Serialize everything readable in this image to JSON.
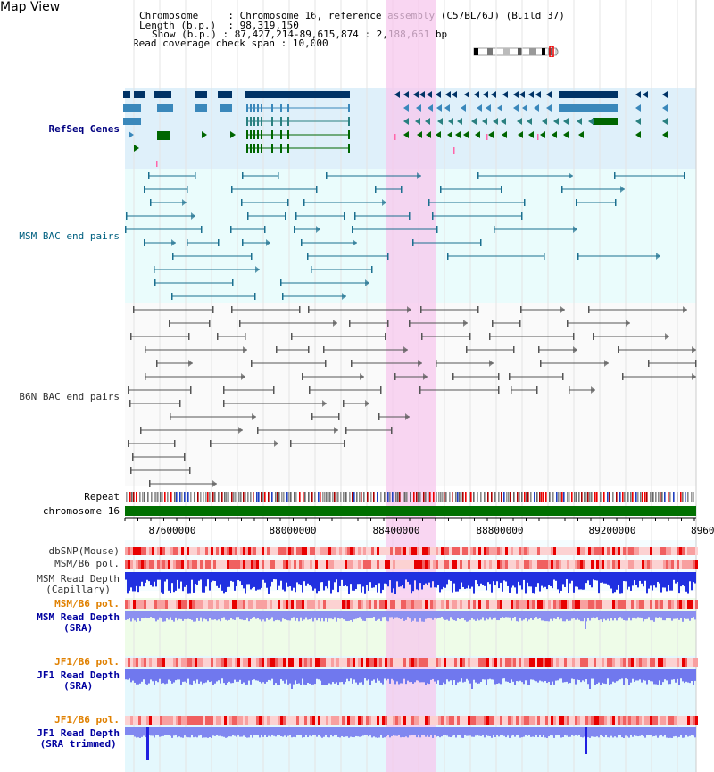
{
  "page_title": "Map View",
  "info": {
    "chromosome_key": "Chromosome",
    "chromosome_val": "Chromosome 16, reference assembly (C57BL/6J) (Build 37)",
    "length_key": "Length (b.p.)",
    "length_val": "98,319,150",
    "show_key": "Show (b.p.)",
    "show_val": "87,427,214-89,615,874 : 2,188,661 bp",
    "coverage_key": "Read coverage check span",
    "coverage_val": "10,000"
  },
  "tracks": {
    "refseq": "RefSeq Genes",
    "msm_bac": "MSM BAC end pairs",
    "b6n_bac": "B6N BAC end pairs",
    "repeat": "Repeat",
    "chrom": "chromosome 16",
    "dbsnp": "dbSNP(Mouse)",
    "msm_pol1": "MSM/B6 pol.",
    "msm_depth_cap_1": "MSM Read Depth",
    "msm_depth_cap_2": "(Capillary)",
    "msm_pol2": "MSM/B6 pol.",
    "msm_depth_sra_1": "MSM Read Depth",
    "msm_depth_sra_2": "(SRA)",
    "jf1_pol1": "JF1/B6 pol.",
    "jf1_depth_sra_1": "JF1 Read Depth",
    "jf1_depth_sra_2": "(SRA)",
    "jf1_pol2": "JF1/B6 pol.",
    "jf1_depth_trim_1": "JF1 Read Depth",
    "jf1_depth_trim_2": "(SRA trimmed)"
  },
  "ruler": {
    "ticks": [
      "87600000",
      "88000000",
      "88400000",
      "88800000",
      "89200000",
      "8960"
    ]
  },
  "colors": {
    "refseq_label": "#000080",
    "msm_label": "#006080",
    "b6n_label": "#333333",
    "pol_orange": "#e08000",
    "depth_blue": "#0000a0",
    "highlight": "#f7c8ee"
  }
}
